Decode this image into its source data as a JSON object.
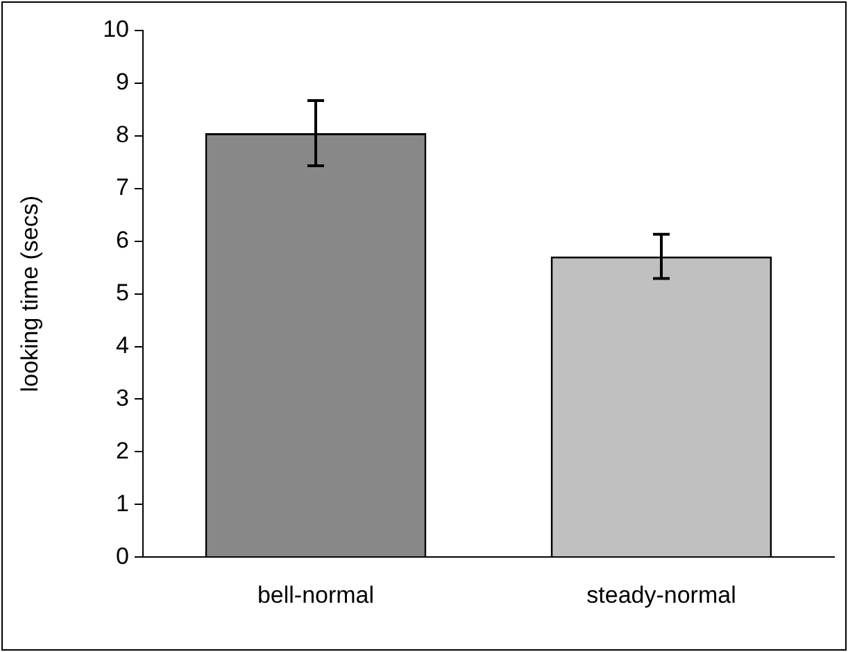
{
  "chart_data": {
    "type": "bar",
    "ylabel": "looking time (secs)",
    "categories": [
      "bell-normal",
      "steady-normal"
    ],
    "values": [
      8.05,
      5.71
    ],
    "colors": [
      "#888888",
      "#c0c0c0"
    ],
    "errors": [
      0.62,
      0.42
    ],
    "ylim": [
      0,
      10
    ],
    "yticks": [
      0,
      1,
      2,
      3,
      4,
      5,
      6,
      7,
      8,
      9,
      10
    ],
    "grid": false,
    "legend": false
  }
}
